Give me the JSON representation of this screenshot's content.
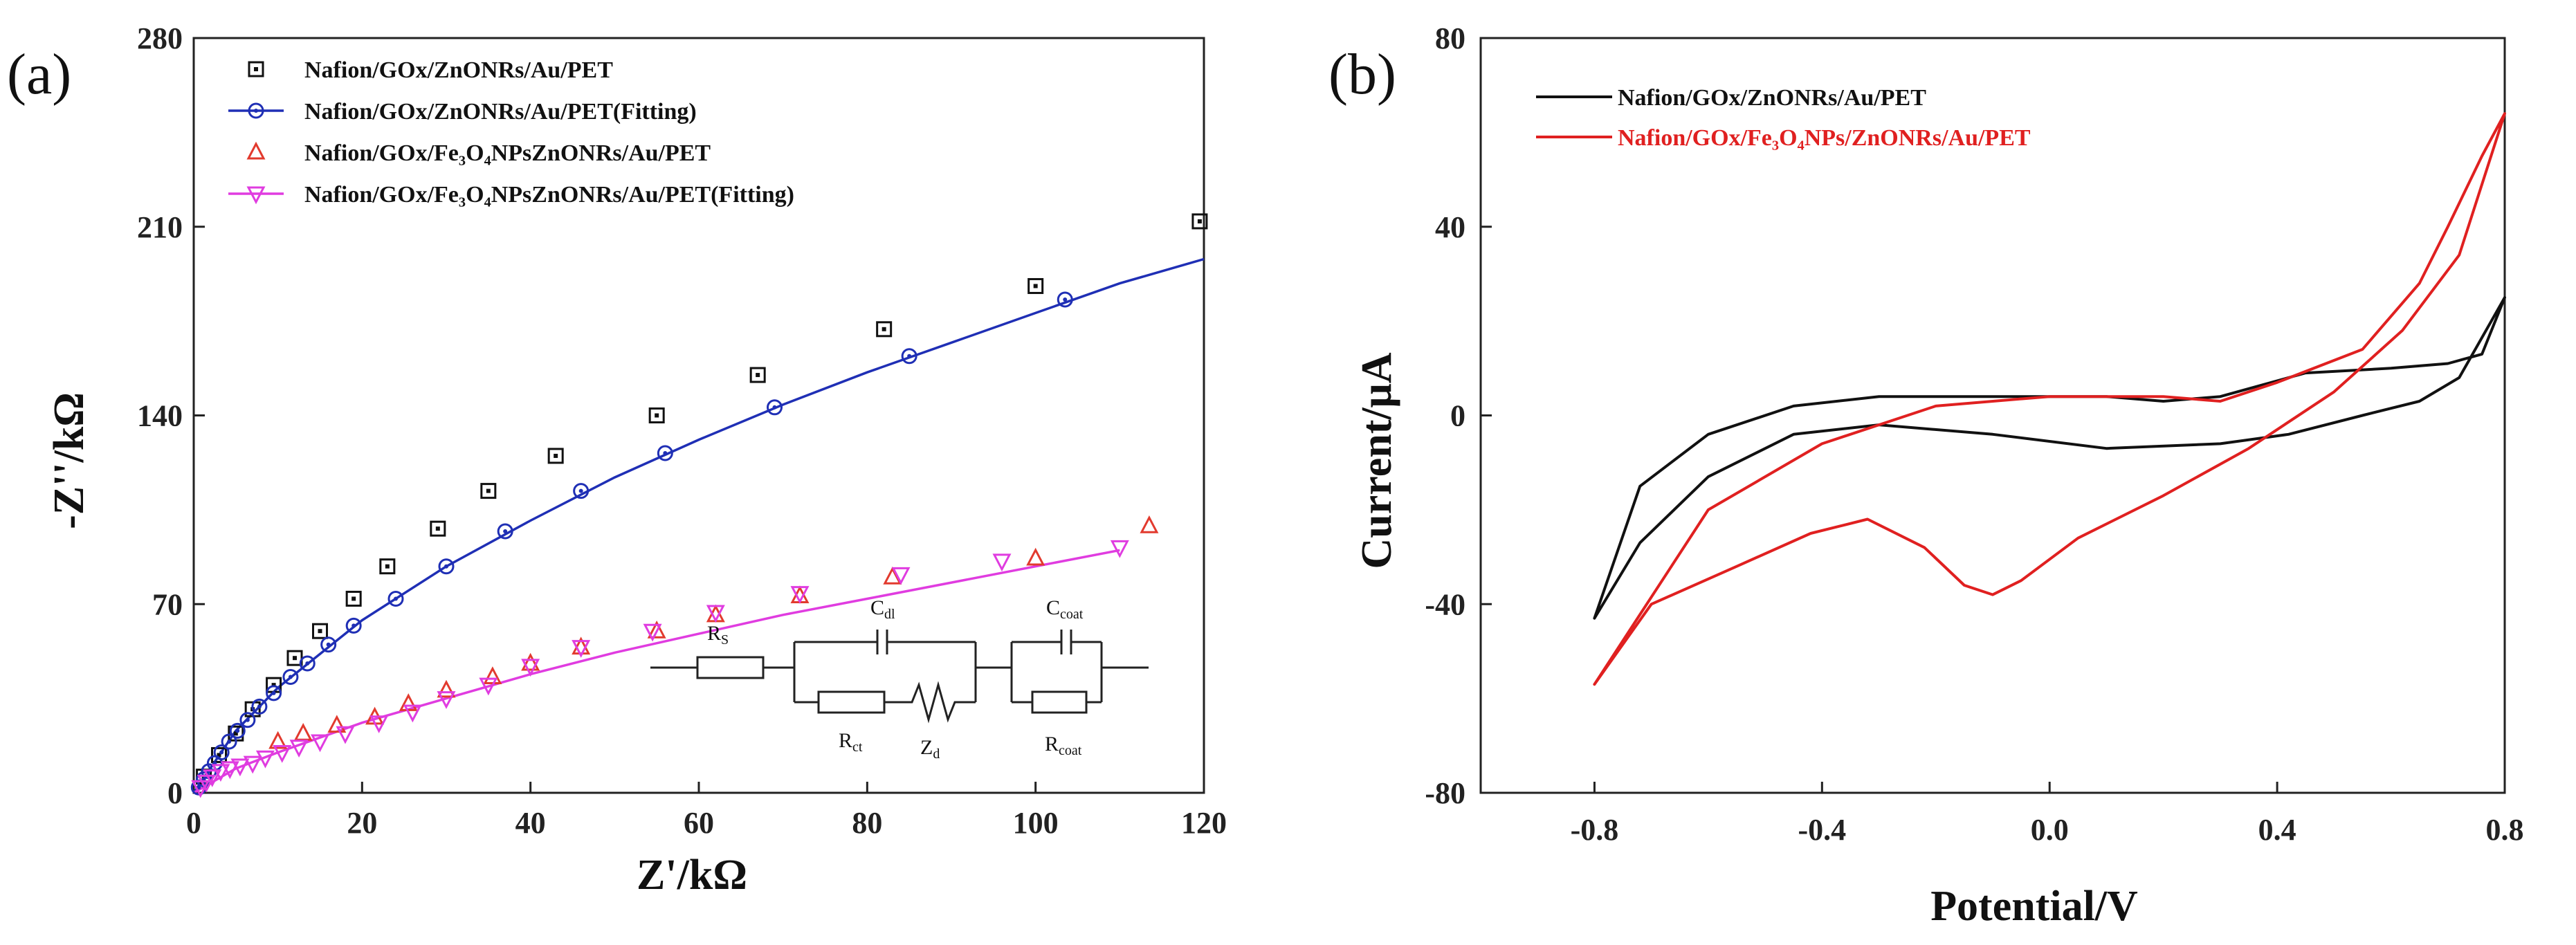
{
  "chart_data": [
    {
      "panel_label": "(a)",
      "type": "scatter",
      "xlabel": "Z'/kΩ",
      "ylabel": "-Z''/kΩ",
      "xlim": [
        0,
        120
      ],
      "ylim": [
        0,
        280
      ],
      "xticks": [
        "0",
        "20",
        "40",
        "60",
        "80",
        "100",
        "120"
      ],
      "yticks": [
        "0",
        "70",
        "140",
        "210",
        "280"
      ],
      "legend_position": "top-left",
      "series": [
        {
          "name": "Nafion/GOx/ZnONRs/Au/PET",
          "marker": "square",
          "color": "#111111",
          "x": [
            1.2,
            3,
            5,
            7,
            9.5,
            12,
            15,
            19,
            23,
            29,
            35,
            43,
            55,
            67,
            82,
            100,
            119.5
          ],
          "y": [
            6,
            14,
            22,
            31,
            40,
            50,
            60,
            72,
            84,
            98,
            112,
            125,
            140,
            155,
            172,
            188,
            212
          ]
        },
        {
          "name": "Nafion/GOx/ZnONRs/Au/PET(Fitting)",
          "marker": "circle",
          "color": "#1f2fb5",
          "x": [
            0.6,
            1.2,
            1.8,
            2.5,
            3.3,
            4.2,
            5.2,
            6.4,
            7.8,
            9.5,
            11.5,
            13.5,
            16,
            19,
            24,
            30,
            37,
            46,
            56,
            69,
            85,
            103.5
          ],
          "y": [
            2,
            5,
            8,
            11,
            15,
            19,
            23,
            27,
            32,
            37,
            43,
            48,
            55,
            62,
            72,
            84,
            97,
            112,
            126,
            143,
            162,
            183
          ],
          "curve_x": [
            0,
            5,
            10,
            20,
            30,
            40,
            50,
            60,
            70,
            80,
            90,
            100,
            110,
            120
          ],
          "curve_y": [
            0,
            23,
            39,
            64,
            84,
            101,
            117,
            131,
            144,
            156,
            167,
            178,
            189,
            198
          ]
        },
        {
          "name": "Nafion/GOx/Fe3O4NPsZnONRs/Au/PET",
          "marker": "triangle-up",
          "color": "#e23a2e",
          "x": [
            10,
            13,
            17,
            21.5,
            25.5,
            30,
            35.5,
            40,
            46,
            55,
            62,
            72,
            83,
            100,
            113.5
          ],
          "y": [
            19,
            22,
            25,
            28,
            33,
            38,
            43,
            48,
            54,
            60,
            66,
            73,
            80,
            87,
            99
          ]
        },
        {
          "name": "Nafion/GOx/Fe3O4NPsZnONRs/Au/PET(Fitting)",
          "marker": "triangle-down",
          "color": "#e03ce0",
          "x": [
            0.8,
            1.5,
            2.2,
            3.2,
            4.3,
            5.5,
            7,
            8.5,
            10.5,
            12.5,
            15,
            18,
            22,
            26,
            30,
            35,
            40,
            46,
            54.5,
            62,
            72,
            84,
            96,
            110
          ],
          "y": [
            2,
            4,
            6,
            8,
            9,
            10,
            11,
            13,
            15,
            17,
            19,
            22,
            26,
            30,
            35,
            40,
            47,
            54,
            60,
            67,
            74,
            81,
            86,
            91
          ],
          "curve_x": [
            0,
            5,
            10,
            20,
            30,
            40,
            50,
            60,
            70,
            80,
            90,
            100,
            110
          ],
          "curve_y": [
            0,
            9,
            15,
            26,
            35,
            44,
            52,
            59,
            66,
            72,
            78,
            84,
            90
          ]
        }
      ],
      "inset": {
        "type": "equivalent-circuit",
        "labels": {
          "rs": "R",
          "rs_sub": "S",
          "cdl": "C",
          "cdl_sub": "dl",
          "rct": "R",
          "rct_sub": "ct",
          "zd": "Z",
          "zd_sub": "d",
          "ccoat": "C",
          "ccoat_sub": "coat",
          "rcoat": "R",
          "rcoat_sub": "coat"
        }
      }
    },
    {
      "panel_label": "(b)",
      "type": "line",
      "xlabel": "Potential/V",
      "ylabel": "Current/μA",
      "xlim": [
        -1.0,
        0.8
      ],
      "ylim": [
        -80,
        80
      ],
      "xticks": [
        "-0.8",
        "-0.4",
        "0.0",
        "0.4",
        "0.8"
      ],
      "yticks": [
        "80",
        "40",
        "0",
        "-40",
        "-80"
      ],
      "legend_position": "top-left",
      "series": [
        {
          "name": "Nafion/GOx/ZnONRs/Au/PET",
          "color": "#111111",
          "x": [
            -0.8,
            -0.72,
            -0.6,
            -0.45,
            -0.3,
            -0.1,
            0.1,
            0.3,
            0.42,
            0.55,
            0.65,
            0.72,
            0.8,
            0.76,
            0.7,
            0.6,
            0.45,
            0.3,
            0.2,
            0.1,
            -0.1,
            -0.3,
            -0.45,
            -0.6,
            -0.72,
            -0.8
          ],
          "y": [
            -43,
            -27,
            -13,
            -4,
            -2,
            -4,
            -7,
            -6,
            -4,
            0,
            3,
            8,
            25,
            13,
            11,
            10,
            9,
            4,
            3,
            4,
            4,
            4,
            2,
            -4,
            -15,
            -43
          ]
        },
        {
          "name": "Nafion/GOx/Fe3O4NPs/ZnONRs/Au/PET",
          "color": "#e02020",
          "x": [
            -0.8,
            -0.7,
            -0.55,
            -0.42,
            -0.32,
            -0.22,
            -0.15,
            -0.1,
            -0.05,
            0.05,
            0.2,
            0.35,
            0.5,
            0.62,
            0.72,
            0.8,
            0.76,
            0.7,
            0.65,
            0.55,
            0.4,
            0.3,
            0.2,
            0.1,
            0.0,
            -0.2,
            -0.4,
            -0.6,
            -0.8
          ],
          "y": [
            -57,
            -40,
            -32,
            -25,
            -22,
            -28,
            -36,
            -38,
            -35,
            -26,
            -17,
            -7,
            5,
            18,
            34,
            64,
            55,
            40,
            28,
            14,
            7,
            3,
            4,
            4,
            4,
            2,
            -6,
            -20,
            -57
          ]
        }
      ]
    }
  ]
}
